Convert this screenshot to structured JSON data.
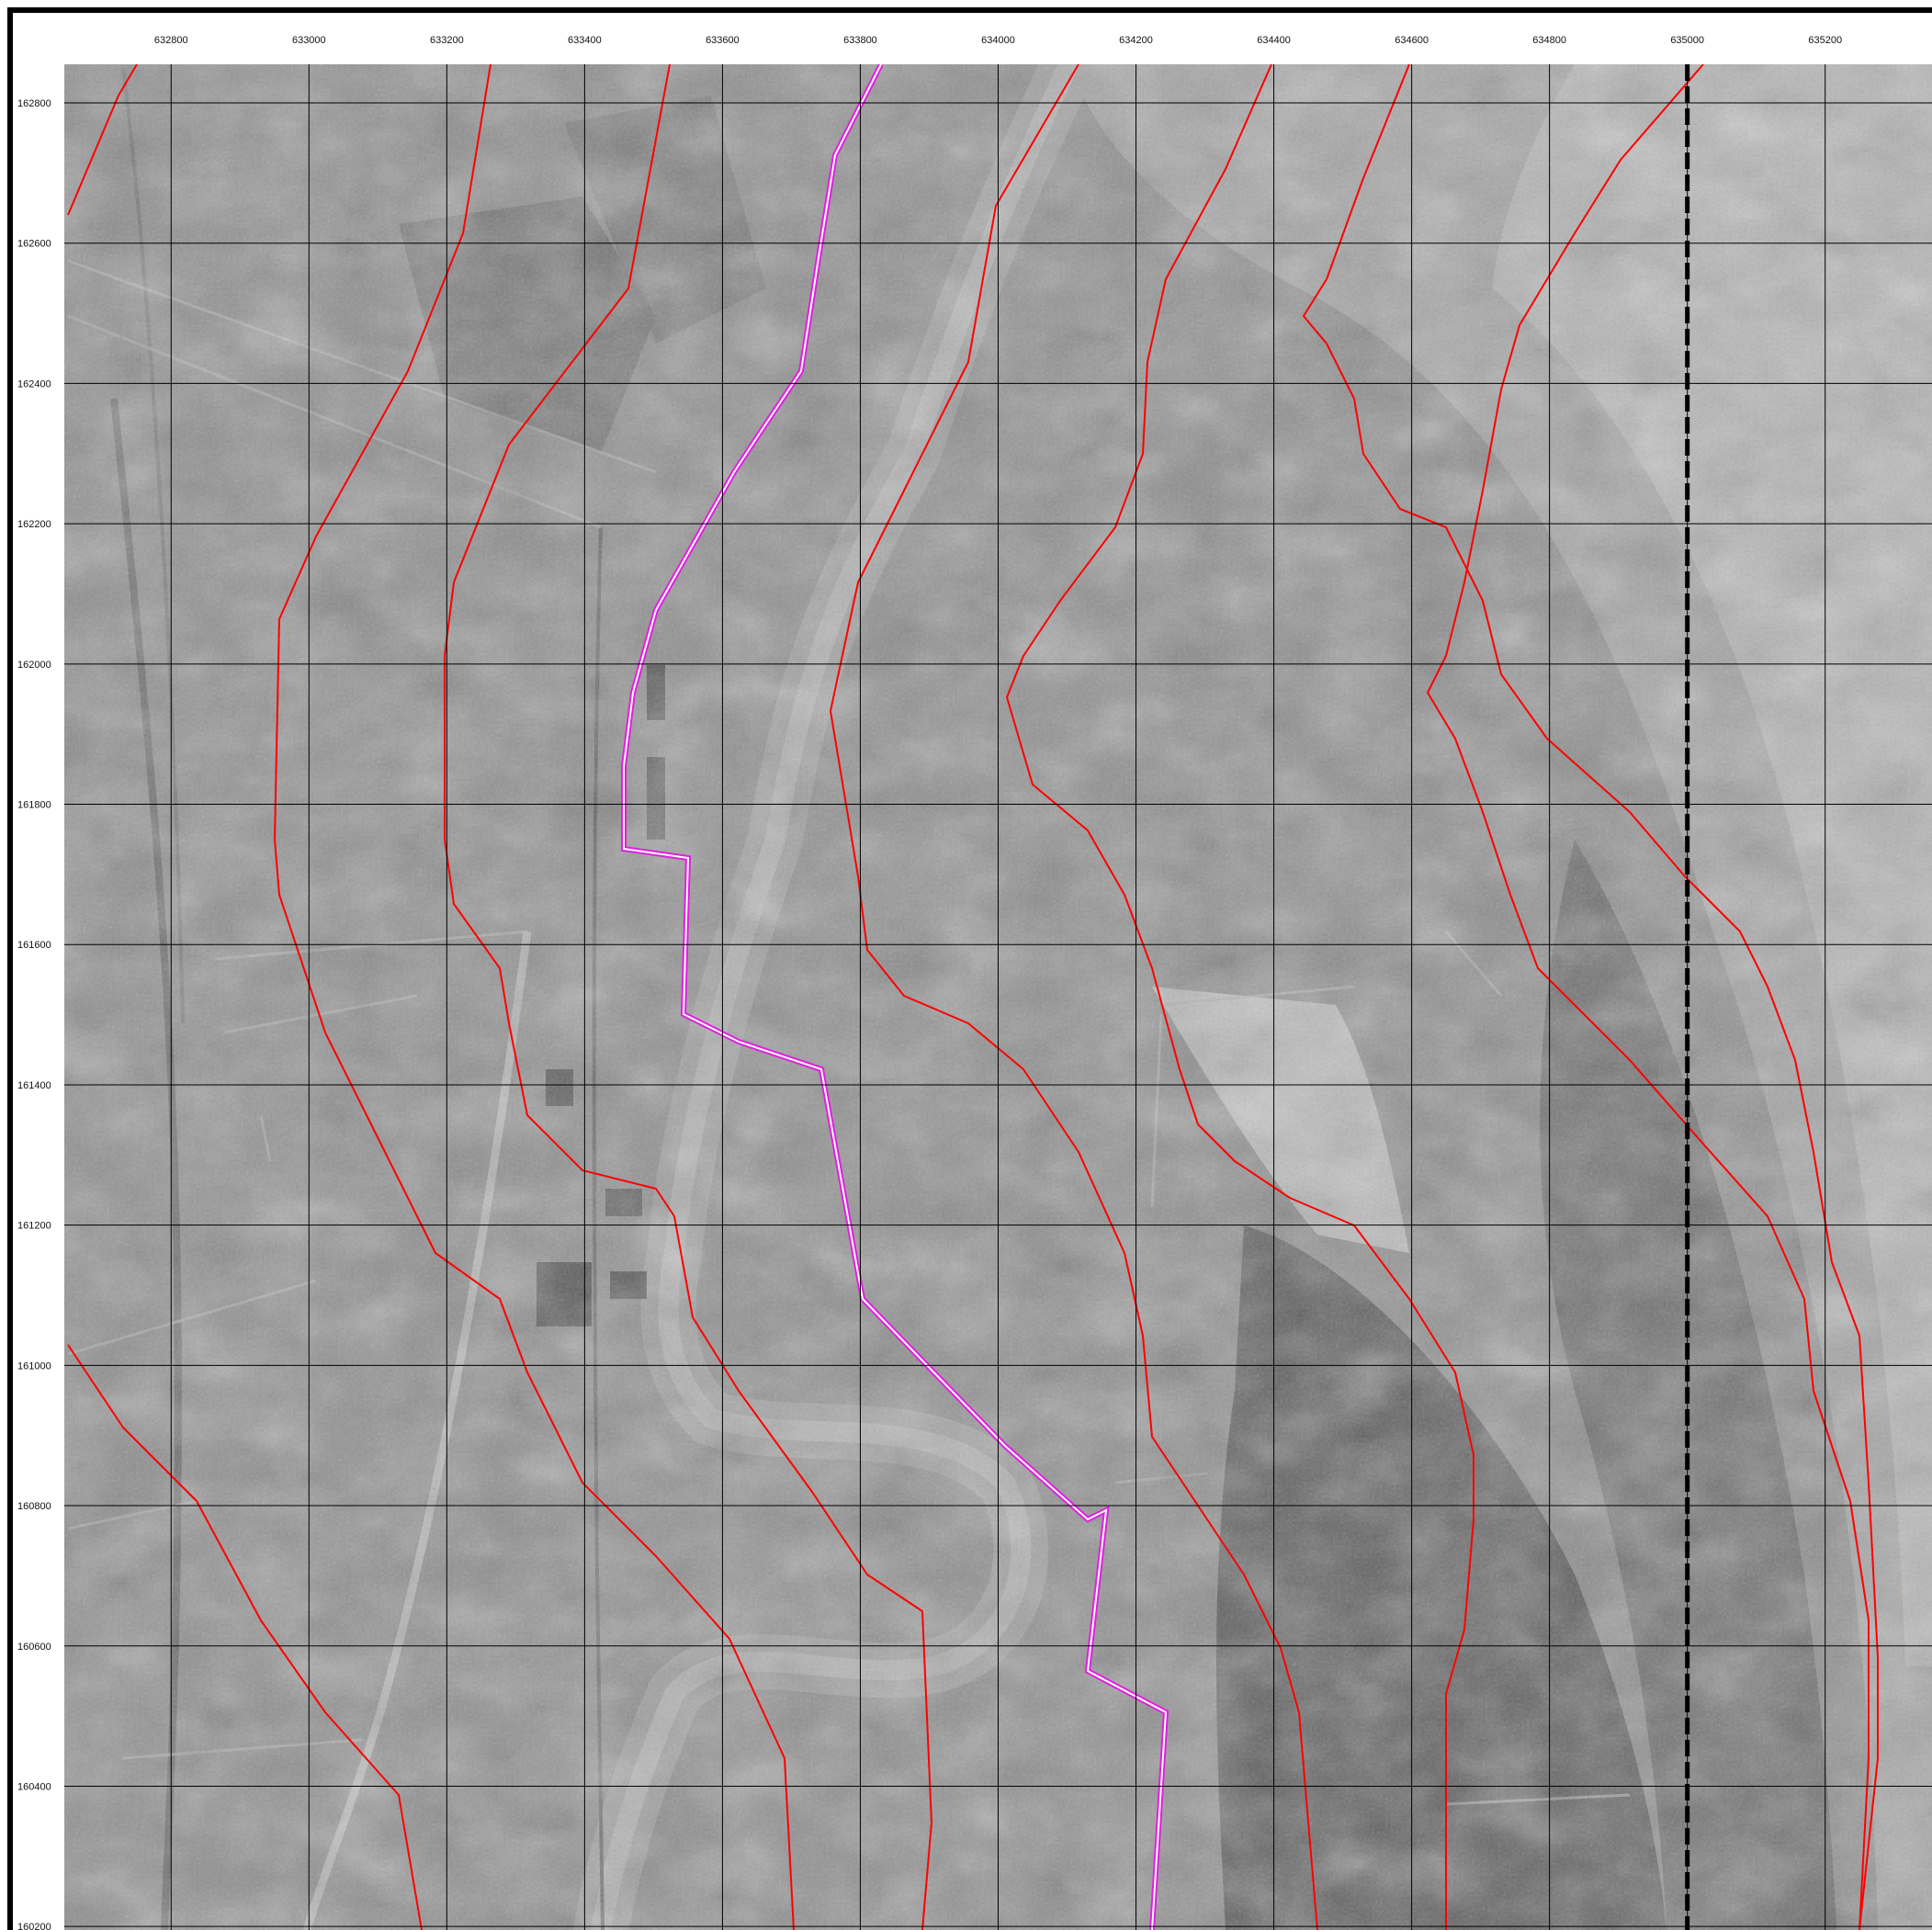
{
  "map": {
    "x_ticks": [
      "632800",
      "633000",
      "633200",
      "633400",
      "633600",
      "633800",
      "634000",
      "634200",
      "634400",
      "634600",
      "634800",
      "635000",
      "635200"
    ],
    "y_ticks": [
      "162800",
      "162600",
      "162400",
      "162200",
      "162000",
      "161800",
      "161600",
      "161400",
      "161200",
      "161000",
      "160800",
      "160600",
      "160400",
      "160200"
    ],
    "easting_range": [
      632645,
      635355
    ],
    "northing_range": [
      162855,
      160195
    ],
    "colors": {
      "grid": "#000000",
      "contour": "#ff0000",
      "route_outer": "#e020e0",
      "route_inner": "#ffffff",
      "boundary": "#000000",
      "photo_base": "#8f8f8f"
    },
    "layers": {
      "basemap": "grayscale-aerial-photograph",
      "contours": "red-lines",
      "route": "magenta-double-line",
      "boundary": "dashed-vertical-line-at-635000"
    }
  }
}
